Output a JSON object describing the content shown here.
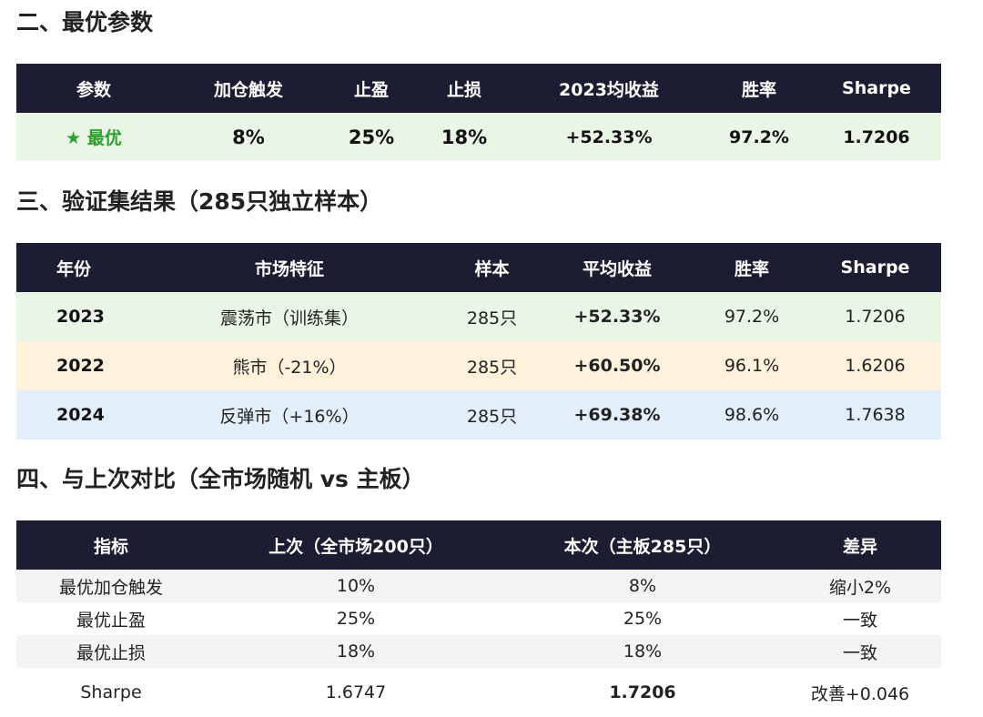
{
  "sec2": {
    "title": "二、最优参数",
    "headers": [
      "参数",
      "加仓触发",
      "止盈",
      "止损",
      "2023均收益",
      "胜率",
      "Sharpe"
    ],
    "row": {
      "label": "★ 最优",
      "trigger": "8%",
      "take_profit": "25%",
      "stop_loss": "18%",
      "return_2023": "+52.33%",
      "win_rate": "97.2%",
      "sharpe": "1.7206"
    }
  },
  "sec3": {
    "title": "三、验证集结果（285只独立样本）",
    "headers": [
      "年份",
      "市场特征",
      "样本",
      "平均收益",
      "胜率",
      "Sharpe"
    ],
    "rows": [
      {
        "year": "2023",
        "market": "震荡市（训练集）",
        "sample": "285只",
        "avg_return": "+52.33%",
        "win_rate": "97.2%",
        "sharpe": "1.7206"
      },
      {
        "year": "2022",
        "market": "熊市（-21%）",
        "sample": "285只",
        "avg_return": "+60.50%",
        "win_rate": "96.1%",
        "sharpe": "1.6206"
      },
      {
        "year": "2024",
        "market": "反弹市（+16%）",
        "sample": "285只",
        "avg_return": "+69.38%",
        "win_rate": "98.6%",
        "sharpe": "1.7638"
      }
    ]
  },
  "sec4": {
    "title": "四、与上次对比（全市场随机 vs 主板）",
    "headers": [
      "指标",
      "上次（全市场200只）",
      "本次（主板285只）",
      "差异"
    ],
    "rows": [
      {
        "metric": "最优加仓触发",
        "prev": "10%",
        "curr": "8%",
        "diff": "缩小2%"
      },
      {
        "metric": "最优止盈",
        "prev": "25%",
        "curr": "25%",
        "diff": "一致"
      },
      {
        "metric": "最优止损",
        "prev": "18%",
        "curr": "18%",
        "diff": "一致"
      },
      {
        "metric": "Sharpe",
        "prev": "1.6747",
        "curr": "1.7206",
        "diff": "改善+0.046"
      }
    ]
  },
  "colors": {
    "header_bg": "#1c1c32",
    "positive_green": "#2e9e2e",
    "row_green": "#e9f6e6",
    "row_orange": "#fff2dd",
    "row_blue": "#e3eefb"
  }
}
